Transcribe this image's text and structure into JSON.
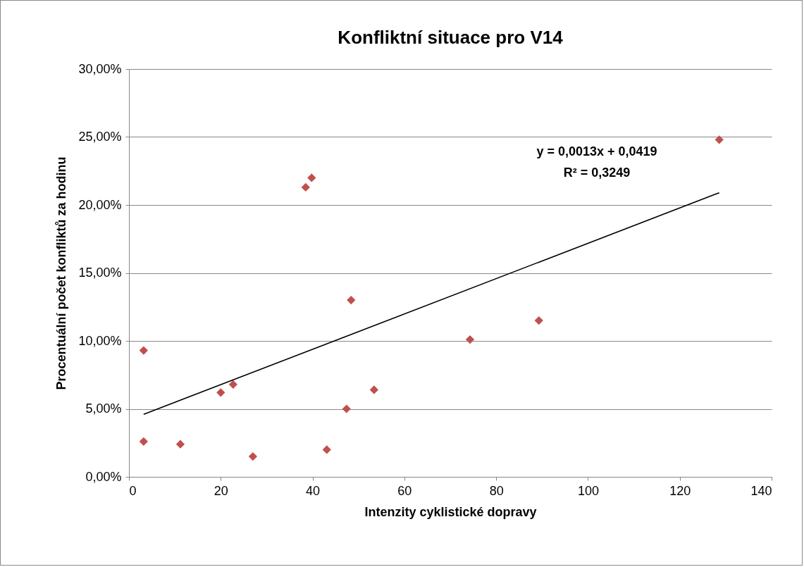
{
  "chart_data": {
    "type": "scatter",
    "title": "Konfliktní situace pro V14",
    "xlabel": "Intenzity cyklistické dopravy",
    "ylabel": "Procentuální počet konfliktů za hodinu",
    "xlim": [
      0,
      140
    ],
    "xticks": [
      0,
      20,
      40,
      60,
      80,
      100,
      120,
      140
    ],
    "ylim": [
      0,
      30
    ],
    "yticks": [
      {
        "value": 0,
        "label": "0,00%"
      },
      {
        "value": 5,
        "label": "5,00%"
      },
      {
        "value": 10,
        "label": "10,00%"
      },
      {
        "value": 15,
        "label": "15,00%"
      },
      {
        "value": 20,
        "label": "20,00%"
      },
      {
        "value": 25,
        "label": "25,00%"
      },
      {
        "value": 30,
        "label": "30,00%"
      }
    ],
    "grid": "y",
    "marker": "diamond",
    "annotations": [
      "y = 0,0013x + 0,0419",
      "R² = 0,3249"
    ],
    "series": [
      {
        "color": "#c0504d",
        "x": [
          3.2,
          3.2,
          11.2,
          20,
          22.7,
          27,
          38.5,
          39.8,
          43.1,
          47.4,
          48.4,
          53.4,
          74.3,
          89.3,
          128.6
        ],
        "values": [
          9.3,
          2.6,
          2.4,
          6.2,
          6.8,
          1.5,
          21.3,
          22.0,
          2.0,
          5.0,
          13.0,
          6.4,
          10.1,
          11.5,
          24.8
        ]
      },
      {
        "type": "line",
        "marker": "none",
        "color": "#000000",
        "x": [
          3.2,
          128.6
        ],
        "values": [
          4.6,
          20.9
        ]
      }
    ]
  }
}
